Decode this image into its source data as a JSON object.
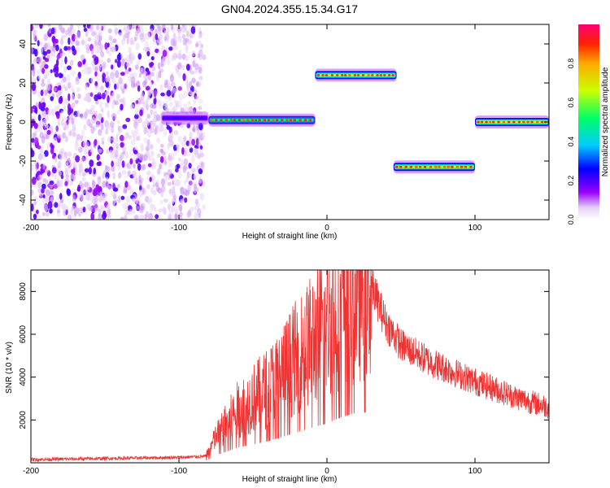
{
  "figure": {
    "title": "GN04.2024.355.15.34.G17"
  },
  "chart_data": [
    {
      "type": "heatmap",
      "xlabel": "Height of straight line (km)",
      "ylabel": "Frequency (Hz)",
      "xlim": [
        -200,
        150
      ],
      "ylim": [
        -50,
        50
      ],
      "xticks": [
        -200,
        -100,
        0,
        100
      ],
      "yticks": [
        -40,
        -20,
        0,
        20,
        40
      ],
      "colorbar": {
        "label": "Normalized spectral amplitude",
        "range": [
          0,
          1
        ],
        "ticks": [
          0.0,
          0.2,
          0.4,
          0.6,
          0.8
        ]
      },
      "segments": [
        {
          "x": [
            -112,
            -80
          ],
          "freq": 2,
          "amplitude": 0.3
        },
        {
          "x": [
            -80,
            -8
          ],
          "freq": 1,
          "amplitude": 0.7
        },
        {
          "x": [
            -8,
            47
          ],
          "freq": 24,
          "amplitude": 0.95
        },
        {
          "x": [
            45,
            100
          ],
          "freq": -23,
          "amplitude": 0.9
        },
        {
          "x": [
            100,
            150
          ],
          "freq": 0,
          "amplitude": 0.95
        }
      ],
      "noise_region": {
        "x": [
          -200,
          -83
        ],
        "freq": [
          -50,
          50
        ],
        "amplitude": 0.15
      }
    },
    {
      "type": "line",
      "xlabel": "Height of straight line (km)",
      "ylabel": "SNR (10 * v/v)",
      "xlim": [
        -200,
        150
      ],
      "ylim": [
        0,
        9000
      ],
      "xticks": [
        -200,
        -100,
        0,
        100
      ],
      "yticks": [
        2000,
        4000,
        6000,
        8000
      ],
      "color": "#ee3333",
      "envelope": {
        "x": [
          -200,
          -150,
          -100,
          -82,
          -75,
          -60,
          -40,
          -20,
          0,
          10,
          20,
          30,
          40,
          50,
          70,
          100,
          130,
          150
        ],
        "y": [
          150,
          200,
          250,
          300,
          1200,
          2500,
          3500,
          5000,
          6500,
          7500,
          8200,
          8300,
          6500,
          5500,
          4700,
          3800,
          3000,
          2600
        ]
      }
    }
  ]
}
